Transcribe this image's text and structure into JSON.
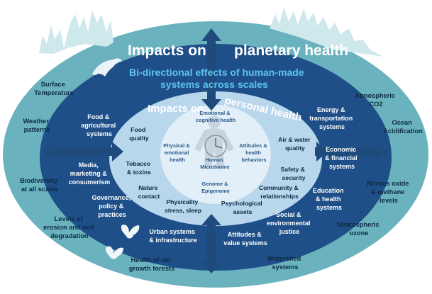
{
  "titles": {
    "impacts_on": "Impacts on",
    "planetary_health": "planetary health",
    "bidirectional_line1": "Bi-directional effects of human-made",
    "bidirectional_line2": "systems across scales",
    "impacts_on_inner": "Impacts on",
    "personal_health": "personal health"
  },
  "outer_labels": {
    "surface_temperature": [
      "Surface",
      "Temperature"
    ],
    "weather_patterns": [
      "Weather",
      "patterns"
    ],
    "biodiversity": [
      "Biodiversity",
      "at all scales"
    ],
    "erosion": [
      "Levels of",
      "erosion and soil",
      "degradation"
    ],
    "old_growth": [
      "Health of old",
      "growth forests"
    ],
    "watershed": [
      "Watershed",
      "systems"
    ],
    "stratospheric_ozone": [
      "Stratospheric",
      "ozone"
    ],
    "nitrous_oxide": [
      "Nitrous oxide",
      "& methane",
      "levels"
    ],
    "ocean_acidification": [
      "Ocean",
      "Acidification"
    ],
    "atmospheric_co2": [
      "Atmospheric",
      "CO2"
    ]
  },
  "middle_labels": {
    "food_agri": [
      "Food  &",
      "agricultural",
      "systems"
    ],
    "media": [
      "Media,",
      "marketing &",
      "consumerism"
    ],
    "governance": [
      "Governance,",
      "policy &",
      "practices"
    ],
    "urban": [
      "Urban systems",
      "& infrastructure"
    ],
    "attitudes_value": [
      "Attitudes &",
      "value  systems"
    ],
    "social_env": [
      "Social &",
      "environmental",
      "justice"
    ],
    "education": [
      "Education",
      "& health",
      "systems"
    ],
    "economic": [
      "Economic",
      "& financial",
      "systems"
    ],
    "energy": [
      "Energy &",
      "transportation",
      "systems"
    ]
  },
  "inner_labels": {
    "food_quality": [
      "Food",
      "quality"
    ],
    "tobacco": [
      "Tobacco",
      "& toxins"
    ],
    "nature_contact": [
      "Nature",
      "contact"
    ],
    "physicality": [
      "Physicality",
      "stress, sleep"
    ],
    "psych_assets": [
      "Psychological",
      "assets"
    ],
    "community": [
      "Community &",
      "relationships"
    ],
    "safety": [
      "Safety &",
      "security"
    ],
    "air_water": [
      "Air & water",
      "quality"
    ]
  },
  "core_labels": {
    "emotional_cognitive": [
      "Emotional &",
      "cognitive health"
    ],
    "physical_emotional": [
      "Physical &",
      "emotional",
      "health"
    ],
    "attitudes_behaviors": [
      "Attitudes &",
      "health",
      "behaviors"
    ],
    "genome": [
      "Genome &",
      "Epigenome"
    ],
    "microbiome": [
      "Human",
      "Microbiome"
    ]
  },
  "colors": {
    "outer_ring": "#6ab2be",
    "middle_ring": "#1e4f88",
    "inner_ring": "#b8d6ec",
    "core": "#e2eef8",
    "arrow": "#1f4a7c",
    "highlight_text": "#5ec4ee",
    "silhouette": "#cfe8ec"
  },
  "icons": [
    "tree-silhouette-icon",
    "dolphin-icon",
    "butterfly-icon",
    "human-figure-icon",
    "clock-icon"
  ]
}
